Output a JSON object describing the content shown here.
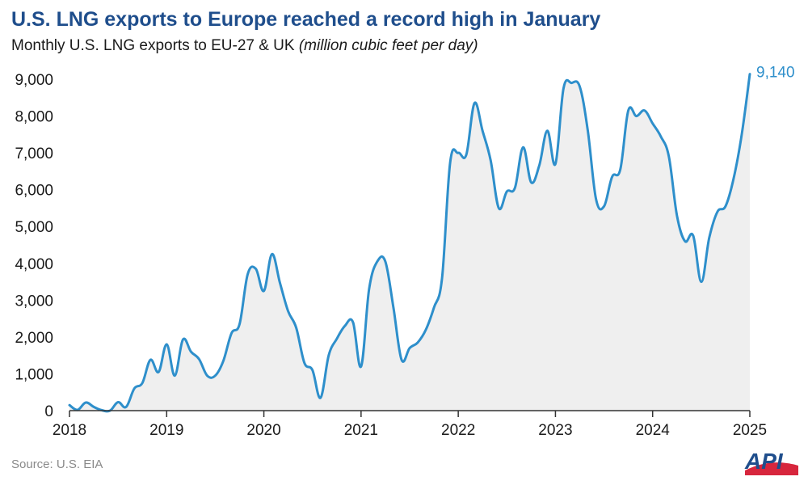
{
  "title": "U.S. LNG exports to Europe reached a record high in January",
  "subtitle": {
    "text": "Monthly U.S. LNG exports to EU-27 & UK",
    "unit": "(million cubic feet per day)"
  },
  "source": "Source: U.S. EIA",
  "logo_text": "API",
  "colors": {
    "title": "#1f4e8c",
    "line": "#2e8fcb",
    "area": "#efefef",
    "axis": "#333333",
    "logo_blue": "#1f4e8c",
    "logo_red": "#d7263d"
  },
  "chart_data": {
    "type": "area",
    "xlim": [
      2018.0,
      2025.0
    ],
    "ylim": [
      0,
      9000
    ],
    "y_ticks": [
      0,
      1000,
      2000,
      3000,
      4000,
      5000,
      6000,
      7000,
      8000,
      9000
    ],
    "y_tick_labels": [
      "0",
      "1,000",
      "2,000",
      "3,000",
      "4,000",
      "5,000",
      "6,000",
      "7,000",
      "8,000",
      "9,000"
    ],
    "x_ticks": [
      2018,
      2019,
      2020,
      2021,
      2022,
      2023,
      2024,
      2025
    ],
    "x_tick_labels": [
      "2018",
      "2019",
      "2020",
      "2021",
      "2022",
      "2023",
      "2024",
      "2025"
    ],
    "grid": false,
    "annotation": {
      "x": 2025.0,
      "y": 9140,
      "text": "9,140"
    },
    "series": [
      {
        "values": [
          [
            2018.0,
            150
          ],
          [
            2018.083,
            20
          ],
          [
            2018.167,
            220
          ],
          [
            2018.25,
            100
          ],
          [
            2018.333,
            10
          ],
          [
            2018.417,
            0
          ],
          [
            2018.5,
            230
          ],
          [
            2018.583,
            100
          ],
          [
            2018.667,
            600
          ],
          [
            2018.75,
            750
          ],
          [
            2018.833,
            1380
          ],
          [
            2018.917,
            1050
          ],
          [
            2019.0,
            1800
          ],
          [
            2019.083,
            950
          ],
          [
            2019.167,
            1930
          ],
          [
            2019.25,
            1600
          ],
          [
            2019.333,
            1400
          ],
          [
            2019.417,
            950
          ],
          [
            2019.5,
            950
          ],
          [
            2019.583,
            1350
          ],
          [
            2019.667,
            2100
          ],
          [
            2019.75,
            2350
          ],
          [
            2019.833,
            3700
          ],
          [
            2019.917,
            3850
          ],
          [
            2020.0,
            3250
          ],
          [
            2020.083,
            4250
          ],
          [
            2020.167,
            3450
          ],
          [
            2020.25,
            2700
          ],
          [
            2020.333,
            2250
          ],
          [
            2020.417,
            1300
          ],
          [
            2020.5,
            1100
          ],
          [
            2020.583,
            350
          ],
          [
            2020.667,
            1500
          ],
          [
            2020.75,
            1950
          ],
          [
            2020.833,
            2300
          ],
          [
            2020.917,
            2400
          ],
          [
            2021.0,
            1200
          ],
          [
            2021.083,
            3300
          ],
          [
            2021.167,
            4050
          ],
          [
            2021.25,
            4050
          ],
          [
            2021.333,
            2800
          ],
          [
            2021.417,
            1380
          ],
          [
            2021.5,
            1700
          ],
          [
            2021.583,
            1850
          ],
          [
            2021.667,
            2200
          ],
          [
            2021.75,
            2800
          ],
          [
            2021.833,
            3600
          ],
          [
            2021.917,
            6750
          ],
          [
            2022.0,
            7000
          ],
          [
            2022.083,
            6950
          ],
          [
            2022.167,
            8350
          ],
          [
            2022.25,
            7600
          ],
          [
            2022.333,
            6800
          ],
          [
            2022.417,
            5500
          ],
          [
            2022.5,
            5950
          ],
          [
            2022.583,
            6050
          ],
          [
            2022.667,
            7150
          ],
          [
            2022.75,
            6200
          ],
          [
            2022.833,
            6650
          ],
          [
            2022.917,
            7600
          ],
          [
            2023.0,
            6700
          ],
          [
            2023.083,
            8750
          ],
          [
            2023.167,
            8900
          ],
          [
            2023.25,
            8800
          ],
          [
            2023.333,
            7600
          ],
          [
            2023.417,
            5750
          ],
          [
            2023.5,
            5550
          ],
          [
            2023.583,
            6350
          ],
          [
            2023.667,
            6550
          ],
          [
            2023.75,
            8150
          ],
          [
            2023.833,
            8000
          ],
          [
            2023.917,
            8150
          ],
          [
            2024.0,
            7800
          ],
          [
            2024.083,
            7450
          ],
          [
            2024.167,
            6900
          ],
          [
            2024.25,
            5300
          ],
          [
            2024.333,
            4600
          ],
          [
            2024.417,
            4750
          ],
          [
            2024.5,
            3500
          ],
          [
            2024.583,
            4700
          ],
          [
            2024.667,
            5400
          ],
          [
            2024.75,
            5550
          ],
          [
            2024.833,
            6300
          ],
          [
            2024.917,
            7500
          ],
          [
            2025.0,
            9140
          ]
        ]
      }
    ]
  }
}
